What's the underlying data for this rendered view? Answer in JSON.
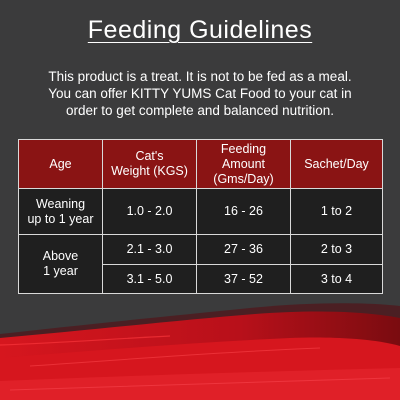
{
  "title": "Feeding Guidelines",
  "intro": {
    "line1": "This product is a treat. It is not to be fed as a meal.",
    "line2": "You can offer KITTY YUMS Cat Food to your cat in",
    "line3": "order to get complete and balanced nutrition."
  },
  "table": {
    "headers": {
      "age": "Age",
      "weight_1": "Cat's",
      "weight_2": "Weight (KGS)",
      "amount_1": "Feeding",
      "amount_2": "Amount",
      "amount_3": "(Gms/Day)",
      "sachet": "Sachet/Day"
    },
    "rows": [
      {
        "age_1": "Weaning",
        "age_2": "up to 1 year",
        "weight": "1.0 - 2.0",
        "amount": "16 - 26",
        "sachet": "1 to 2"
      },
      {
        "age_1": "Above",
        "age_2": "1 year",
        "weight": "2.1 - 3.0",
        "amount": "27 - 36",
        "sachet": "2 to 3"
      },
      {
        "weight": "3.1 - 5.0",
        "amount": "37 - 52",
        "sachet": "3 to 4"
      }
    ]
  },
  "colors": {
    "background": "#3b3b3c",
    "header_red": "#8a1414",
    "cell_dark": "#1f1f1f",
    "swoosh_red": "#c8141e"
  }
}
